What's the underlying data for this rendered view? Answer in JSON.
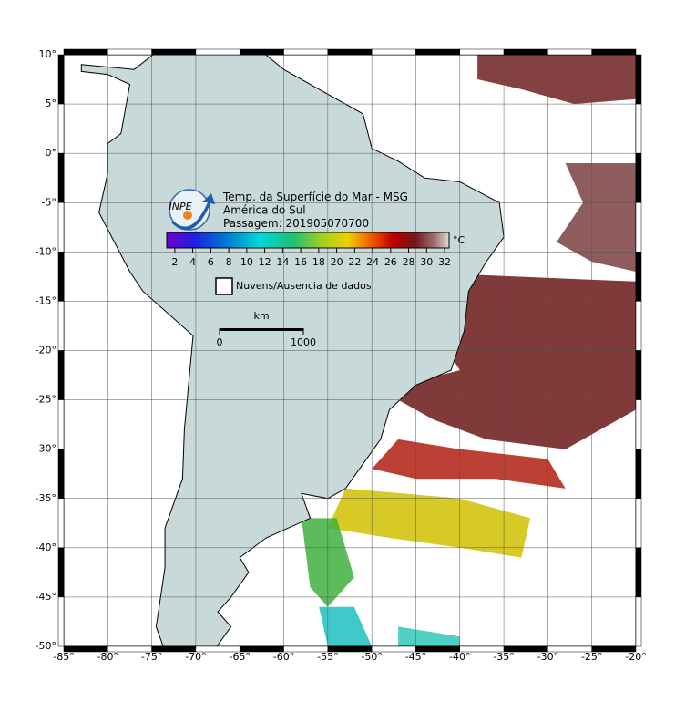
{
  "map": {
    "title_lines": [
      "Temp. da Superfície do Mar - MSG",
      "América do Sul",
      "Passagem: 201905070700"
    ],
    "logo_text": "INPE",
    "colorbar": {
      "clim": [
        1.1,
        32.5
      ],
      "ticks": [
        2,
        4,
        6,
        8,
        10,
        12,
        14,
        16,
        18,
        20,
        22,
        24,
        26,
        28,
        30,
        32
      ],
      "unit": "°C"
    },
    "legend": "Nuvens/Ausencia de dados",
    "scale_bar": {
      "unit": "km",
      "labels": [
        "0",
        "1000"
      ]
    },
    "xlim": [
      -85,
      -20
    ],
    "ylim": [
      -50,
      10
    ],
    "xticks": [
      {
        "value": -85,
        "label": "-85°"
      },
      {
        "value": -80,
        "label": "-80°"
      },
      {
        "value": -75,
        "label": "-75°"
      },
      {
        "value": -70,
        "label": "-70°"
      },
      {
        "value": -65,
        "label": "-65°"
      },
      {
        "value": -60,
        "label": "-60°"
      },
      {
        "value": -55,
        "label": "-55°"
      },
      {
        "value": -50,
        "label": "-50°"
      },
      {
        "value": -45,
        "label": "-45°"
      },
      {
        "value": -40,
        "label": "-40°"
      },
      {
        "value": -35,
        "label": "-35°"
      },
      {
        "value": -30,
        "label": "-30°"
      },
      {
        "value": -25,
        "label": "-25°"
      },
      {
        "value": -20,
        "label": "-20°"
      }
    ],
    "yticks": [
      {
        "value": 10,
        "label": "10°"
      },
      {
        "value": 5,
        "label": "5°"
      },
      {
        "value": 0,
        "label": "0°"
      },
      {
        "value": -5,
        "label": "-5°"
      },
      {
        "value": -10,
        "label": "-10°"
      },
      {
        "value": -15,
        "label": "-15°"
      },
      {
        "value": -20,
        "label": "-20°"
      },
      {
        "value": -25,
        "label": "-25°"
      },
      {
        "value": -30,
        "label": "-30°"
      },
      {
        "value": -35,
        "label": "-35°"
      },
      {
        "value": -40,
        "label": "-40°"
      },
      {
        "value": -45,
        "label": "-45°"
      },
      {
        "value": -50,
        "label": "-50°"
      }
    ],
    "grid": true
  }
}
